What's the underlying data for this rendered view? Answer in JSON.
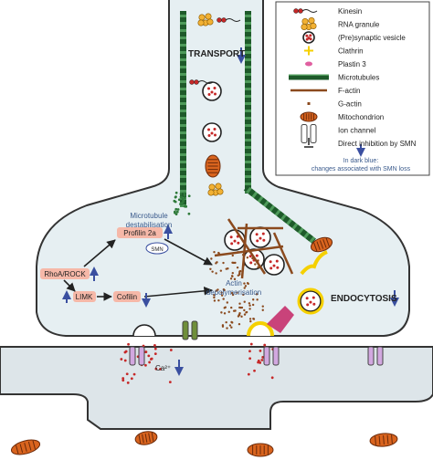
{
  "labels": {
    "transport": "TRANSPORT",
    "microtubule": [
      "Microtubule",
      "destabilisation"
    ],
    "profilin": "Profilin 2a",
    "smn": "SMN",
    "rhoa": "RhoA/ROCK",
    "limk": "LIMK",
    "cofilin": "Cofilin",
    "actin": [
      "Actin",
      "depolymerisation"
    ],
    "endocytosis": "ENDOCYTOSIS",
    "calcium": "Ca²⁺"
  },
  "legend": {
    "items": [
      "Kinesin",
      "RNA granule",
      "(Pre)synaptic vesicle",
      "Clathrin",
      "Plastin 3",
      "Microtubules",
      "F-actin",
      "G-actin",
      "Mitochondrion",
      "Ion channel",
      "Direct inhibition by SMN"
    ],
    "note": [
      "In dark blue:",
      "changes associated with SMN loss"
    ]
  }
}
